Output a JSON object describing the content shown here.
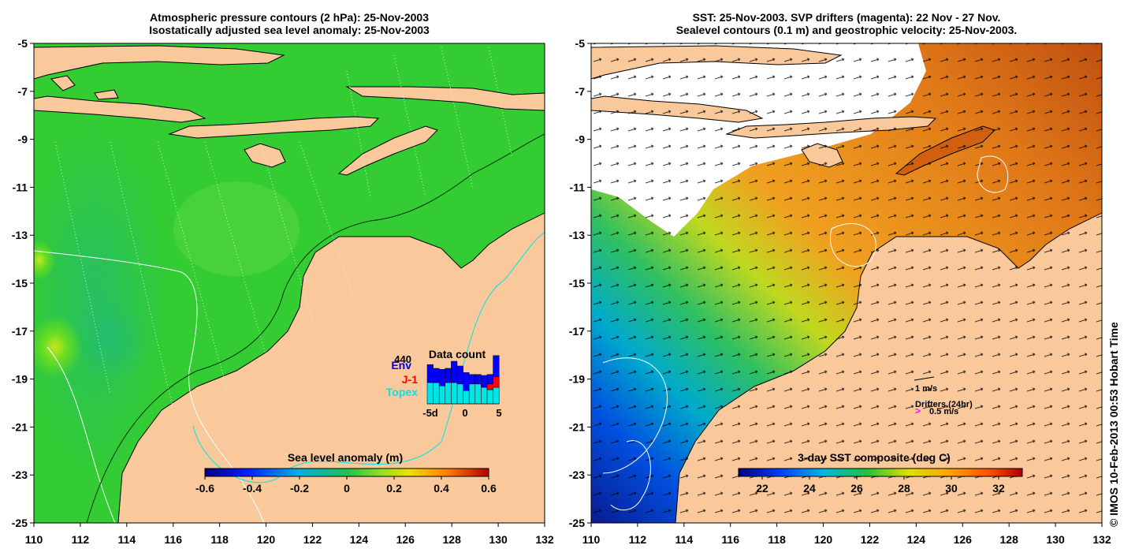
{
  "left_panel": {
    "title_line1": "Atmospheric pressure contours (2 hPa): 25-Nov-2003",
    "title_line2": "Isostatically adjusted sea level anomaly: 25-Nov-2003",
    "lat_ticks": [
      "-5",
      "-7",
      "-9",
      "-11",
      "-13",
      "-15",
      "-17",
      "-19",
      "-21",
      "-23",
      "-25"
    ],
    "lon_ticks": [
      "110",
      "112",
      "114",
      "116",
      "118",
      "120",
      "122",
      "124",
      "126",
      "128",
      "130",
      "132"
    ],
    "colorbar_label": "Sea level anomaly (m)",
    "colorbar_ticks": [
      "-0.6",
      "-0.4",
      "-0.2",
      "0",
      "0.2",
      "0.4",
      "0.6"
    ],
    "data_count": {
      "title": "Data count",
      "max_label": "440",
      "sources": [
        {
          "name": "Env",
          "color": "#0000ff"
        },
        {
          "name": "J-1",
          "color": "#ff0000"
        },
        {
          "name": "Topex",
          "color": "#00e5e5"
        }
      ],
      "x_labels": [
        "-5d",
        "0",
        "5"
      ],
      "topex": [
        0.45,
        0.45,
        0.38,
        0.45,
        0.45,
        0.42,
        0.28,
        0.42,
        0.42,
        0.35,
        0.3,
        0.35
      ],
      "jason1": [
        0,
        0,
        0,
        0,
        0,
        0,
        0,
        0,
        0,
        0,
        0.12,
        0.22
      ],
      "envisat": [
        0.38,
        0.3,
        0.35,
        0.3,
        0.45,
        0.38,
        0.38,
        0.2,
        0.2,
        0.25,
        0.2,
        0.45
      ]
    }
  },
  "right_panel": {
    "title_line1": "SST: 25-Nov-2003. SVP drifters (magenta): 22 Nov - 27 Nov.",
    "title_line2": "Sealevel contours (0.1 m) and geostrophic velocity: 25-Nov-2003.",
    "lat_ticks": [
      "-5",
      "-7",
      "-9",
      "-11",
      "-13",
      "-15",
      "-17",
      "-19",
      "-21",
      "-23",
      "-25"
    ],
    "lon_ticks": [
      "110",
      "112",
      "114",
      "116",
      "118",
      "120",
      "122",
      "124",
      "126",
      "128",
      "130",
      "132"
    ],
    "colorbar_label": "3-day SST composite (deg C)",
    "colorbar_ticks": [
      "22",
      "24",
      "26",
      "28",
      "30",
      "32"
    ],
    "velocity_legend": "1 m/s",
    "drifters_legend": "Drifters (24hr)",
    "drifter_speed": "0.5 m/s"
  },
  "credit": "© IMOS 10-Feb-2013 00:53 Hobart Time",
  "colors": {
    "land": "#f9c89b",
    "ocean_sla": "#33cc33",
    "sst_warm": "#e88a1c",
    "sst_cold": "#0a2aa0"
  }
}
